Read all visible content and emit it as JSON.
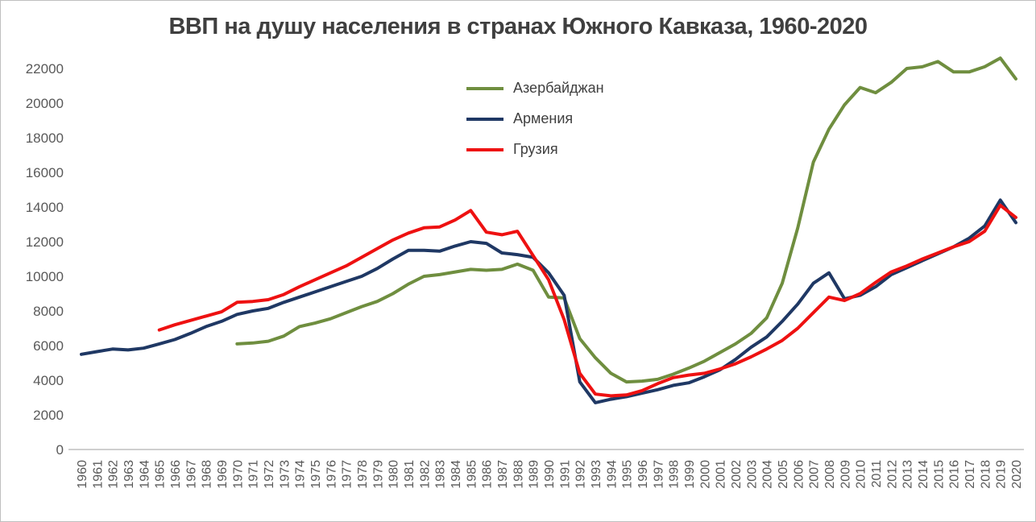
{
  "chart_data": {
    "type": "line",
    "title": "ВВП на душу населения в странах Южного Кавказа, 1960-2020",
    "xlabel": "",
    "ylabel": "",
    "ylim": [
      0,
      22000
    ],
    "yticks": [
      0,
      2000,
      4000,
      6000,
      8000,
      10000,
      12000,
      14000,
      16000,
      18000,
      20000,
      22000
    ],
    "grid": false,
    "legend_position": "top-center",
    "axis_color": "#bfbfbf",
    "tick_label_color": "#595959",
    "title_color": "#3f3f3f",
    "x": [
      1960,
      1961,
      1962,
      1963,
      1964,
      1965,
      1966,
      1967,
      1968,
      1969,
      1970,
      1971,
      1972,
      1973,
      1974,
      1975,
      1976,
      1977,
      1978,
      1979,
      1980,
      1981,
      1982,
      1983,
      1984,
      1985,
      1986,
      1987,
      1988,
      1989,
      1990,
      1991,
      1992,
      1993,
      1994,
      1995,
      1996,
      1997,
      1998,
      1999,
      2000,
      2001,
      2002,
      2003,
      2004,
      2005,
      2006,
      2007,
      2008,
      2009,
      2010,
      2011,
      2012,
      2013,
      2014,
      2015,
      2016,
      2017,
      2018,
      2019,
      2020
    ],
    "series": [
      {
        "name": "Азербайджан",
        "color": "#6f8e3f",
        "values": [
          null,
          null,
          null,
          null,
          null,
          null,
          null,
          null,
          null,
          null,
          6100,
          6150,
          6250,
          6550,
          7100,
          7300,
          7550,
          7900,
          8250,
          8550,
          9000,
          9550,
          10000,
          10100,
          10250,
          10400,
          10350,
          10400,
          10700,
          10350,
          8800,
          8750,
          6400,
          5300,
          4400,
          3900,
          3950,
          4050,
          4350,
          4700,
          5100,
          5600,
          6100,
          6700,
          7600,
          9600,
          12800,
          16600,
          18500,
          19900,
          20900,
          20600,
          21200,
          22000,
          22100,
          22400,
          21800,
          21800,
          22100,
          22600,
          21400
        ]
      },
      {
        "name": "Армения",
        "color": "#1f3864",
        "values": [
          5500,
          5650,
          5800,
          5750,
          5850,
          6100,
          6350,
          6700,
          7100,
          7400,
          7800,
          8000,
          8150,
          8500,
          8800,
          9100,
          9400,
          9700,
          10000,
          10450,
          11000,
          11500,
          11500,
          11450,
          11750,
          12000,
          11900,
          11350,
          11250,
          11100,
          10200,
          8900,
          3900,
          2700,
          2900,
          3050,
          3250,
          3450,
          3700,
          3850,
          4200,
          4600,
          5200,
          5900,
          6500,
          7400,
          8400,
          9600,
          10200,
          8700,
          8900,
          9400,
          10100,
          10500,
          10900,
          11300,
          11700,
          12200,
          12900,
          14400,
          13100
        ]
      },
      {
        "name": "Грузия",
        "color": "#ee1111",
        "values": [
          null,
          null,
          null,
          null,
          null,
          6900,
          7200,
          7450,
          7700,
          7950,
          8500,
          8550,
          8650,
          8950,
          9400,
          9800,
          10200,
          10600,
          11100,
          11600,
          12100,
          12500,
          12800,
          12850,
          13250,
          13800,
          12550,
          12400,
          12600,
          11200,
          9800,
          7500,
          4400,
          3200,
          3100,
          3150,
          3400,
          3800,
          4150,
          4300,
          4400,
          4650,
          4950,
          5350,
          5800,
          6300,
          7000,
          7900,
          8800,
          8600,
          9000,
          9650,
          10250,
          10600,
          11000,
          11350,
          11700,
          12000,
          12600,
          14100,
          13400
        ]
      }
    ]
  }
}
